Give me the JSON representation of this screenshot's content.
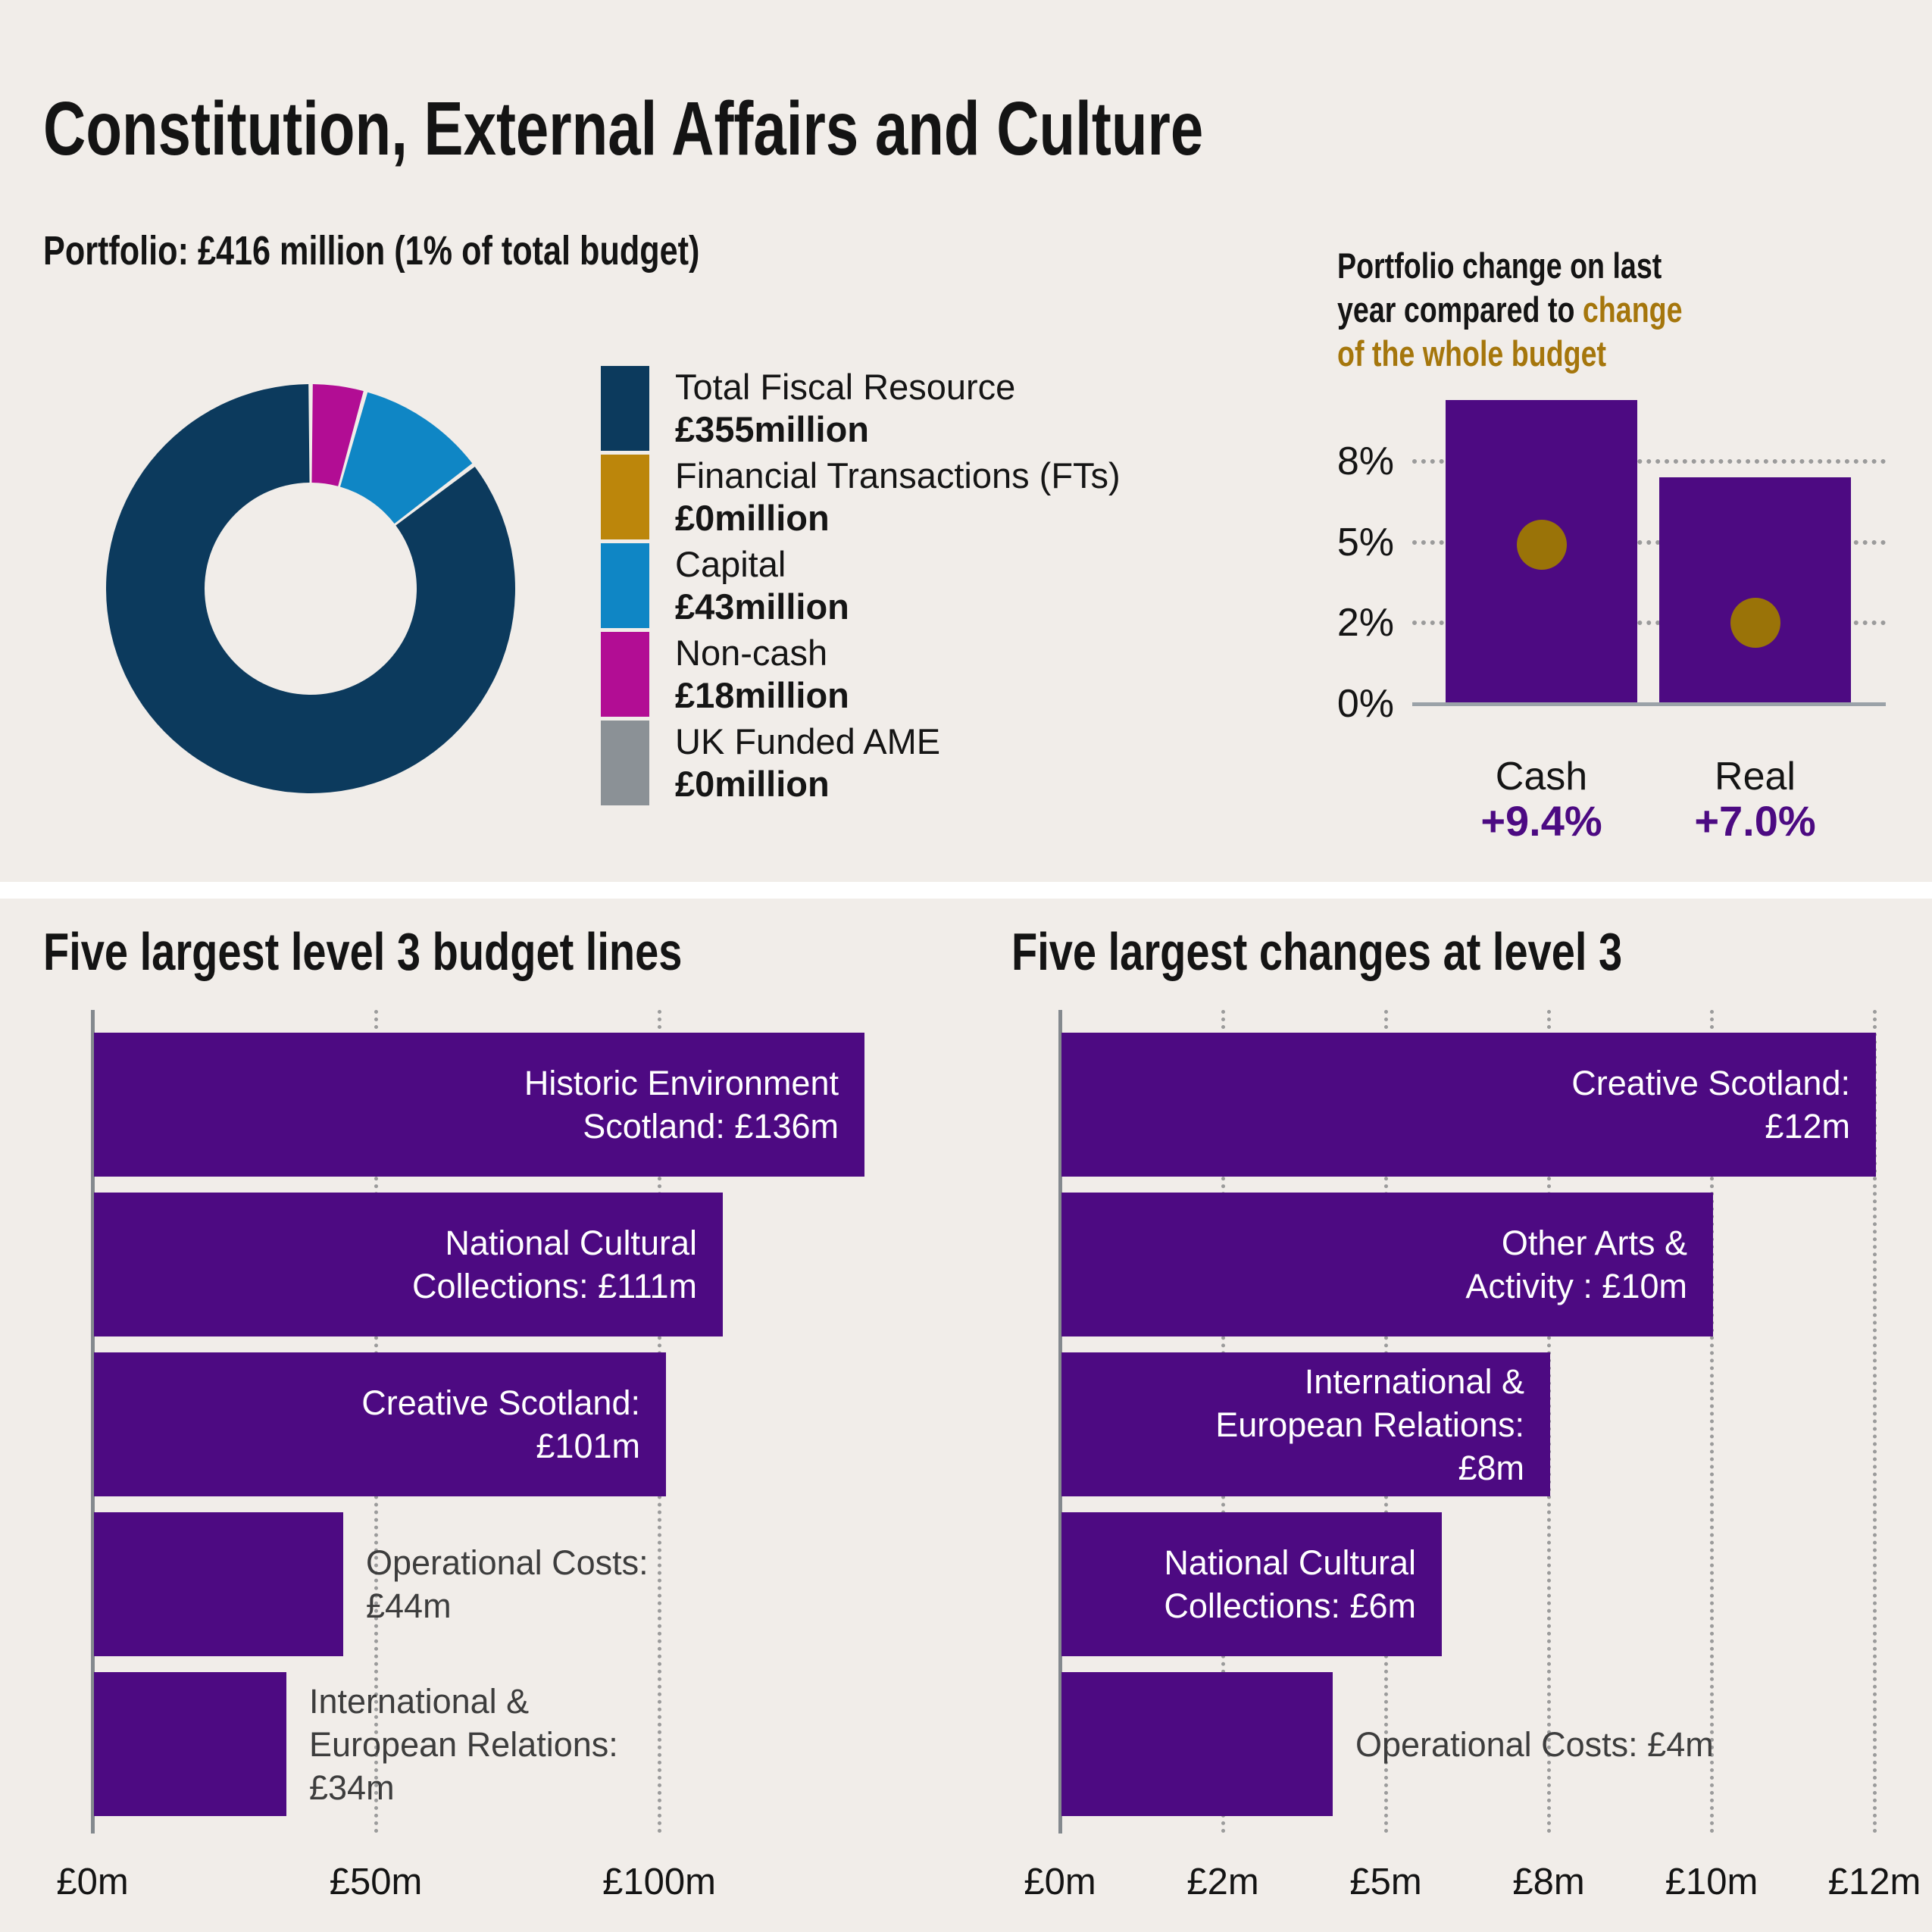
{
  "page": {
    "title": "Constitution, External Affairs and Culture"
  },
  "colors": {
    "background": "#f1ede9",
    "navy": "#0c3a5d",
    "gold": "#bc860b",
    "gold_text": "#a5760c",
    "gold_dot": "#9a7308",
    "blue": "#0f86c5",
    "magenta": "#b20d94",
    "gray": "#8b9196",
    "purple": "#4d0a82",
    "purple_text": "#4c0a82",
    "outside_label_gray": "#3d3d3d"
  },
  "chart_data": [
    {
      "type": "pie",
      "subtype": "donut",
      "title": "Portfolio: £416 million (1% of total budget)",
      "total_millions": 416,
      "slices": [
        {
          "label": "Total Fiscal Resource",
          "value": 355,
          "display": "£355million",
          "color": "#0c3a5d"
        },
        {
          "label": "Financial Transactions (FTs)",
          "value": 0,
          "display": "£0million",
          "color": "#bc860b"
        },
        {
          "label": "Capital",
          "value": 43,
          "display": "£43million",
          "color": "#0f86c5"
        },
        {
          "label": "Non-cash",
          "value": 18,
          "display": "£18million",
          "color": "#b20d94"
        },
        {
          "label": "UK Funded AME",
          "value": 0,
          "display": "£0million",
          "color": "#8b9196"
        }
      ],
      "legend_position": "right"
    },
    {
      "type": "bar",
      "title_lines": [
        [
          {
            "text": "Portfolio change on last",
            "color": "black"
          }
        ],
        [
          {
            "text": "year compared to ",
            "color": "black"
          },
          {
            "text": "change",
            "color": "gold"
          }
        ],
        [
          {
            "text": "of the whole budget",
            "color": "gold"
          }
        ]
      ],
      "categories": [
        "Cash",
        "Real"
      ],
      "series": [
        {
          "name": "Portfolio change",
          "values": [
            9.4,
            7.0
          ],
          "labels": [
            "+9.4%",
            "+7.0%"
          ],
          "style": "bar"
        },
        {
          "name": "Whole budget change",
          "values": [
            4.9,
            2.0
          ],
          "style": "dot"
        }
      ],
      "yticks": [
        {
          "value": 0,
          "label": "0%"
        },
        {
          "value": 2,
          "label": "2%"
        },
        {
          "value": 5,
          "label": "5%"
        },
        {
          "value": 8,
          "label": "8%"
        }
      ],
      "grid": "dotted-horizontal"
    },
    {
      "type": "bar",
      "orientation": "horizontal",
      "title": "Five largest level 3 budget lines",
      "xticks": [
        {
          "value": 0,
          "label": "£0m"
        },
        {
          "value": 50,
          "label": "£50m"
        },
        {
          "value": 100,
          "label": "£100m"
        }
      ],
      "bars": [
        {
          "name": "Historic Environment Scotland",
          "value": 136,
          "label_lines": [
            "Historic Environment",
            "Scotland: £136m"
          ],
          "label_inside": true
        },
        {
          "name": "National Cultural Collections",
          "value": 111,
          "label_lines": [
            "National Cultural",
            "Collections: £111m"
          ],
          "label_inside": true
        },
        {
          "name": "Creative Scotland",
          "value": 101,
          "label_lines": [
            "Creative Scotland:",
            "£101m"
          ],
          "label_inside": true
        },
        {
          "name": "Operational Costs",
          "value": 44,
          "label_lines": [
            "Operational Costs:",
            "£44m"
          ],
          "label_inside": false
        },
        {
          "name": "International & European Relations",
          "value": 34,
          "label_lines": [
            "International &",
            "European Relations:",
            "£34m"
          ],
          "label_inside": false
        }
      ],
      "grid": "dotted-vertical"
    },
    {
      "type": "bar",
      "orientation": "horizontal",
      "title": "Five largest changes at level 3",
      "xticks": [
        {
          "value": 0,
          "label": "£0m"
        },
        {
          "value": 2,
          "label": "£2m"
        },
        {
          "value": 5,
          "label": "£5m"
        },
        {
          "value": 8,
          "label": "£8m"
        },
        {
          "value": 10,
          "label": "£10m"
        },
        {
          "value": 12,
          "label": "£12m"
        }
      ],
      "bars": [
        {
          "name": "Creative Scotland",
          "value": 12,
          "label_lines": [
            "Creative Scotland:",
            "£12m"
          ],
          "label_inside": true
        },
        {
          "name": "Other Arts & Activity",
          "value": 10,
          "label_lines": [
            "Other Arts &",
            "Activity : £10m"
          ],
          "label_inside": true
        },
        {
          "name": "International & European Relations",
          "value": 8,
          "label_lines": [
            "International &",
            "European Relations:",
            "£8m"
          ],
          "label_inside": true
        },
        {
          "name": "National Cultural Collections",
          "value": 6,
          "label_lines": [
            "National Cultural",
            "Collections: £6m"
          ],
          "label_inside": true
        },
        {
          "name": "Operational Costs",
          "value": 4,
          "label_lines": [
            "Operational Costs: £4m"
          ],
          "label_inside": false
        }
      ],
      "grid": "dotted-vertical"
    }
  ]
}
